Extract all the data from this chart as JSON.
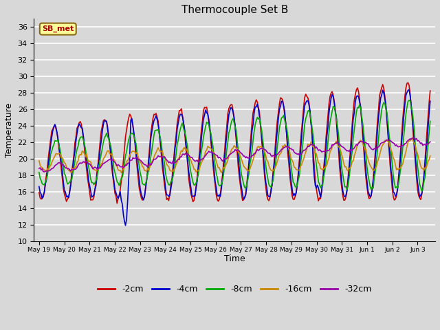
{
  "title": "Thermocouple Set B",
  "xlabel": "Time",
  "ylabel": "Temperature",
  "ylim": [
    10,
    37
  ],
  "yticks": [
    10,
    12,
    14,
    16,
    18,
    20,
    22,
    24,
    26,
    28,
    30,
    32,
    34,
    36
  ],
  "plot_bg_color": "#d8d8d8",
  "fig_bg_color": "#d8d8d8",
  "annotation_text": "SB_met",
  "annotation_bg": "#ffff99",
  "annotation_border": "#8b6914",
  "annotation_text_color": "#aa0000",
  "legend_labels": [
    "-2cm",
    "-4cm",
    "-8cm",
    "-16cm",
    "-32cm"
  ],
  "line_colors": [
    "#cc0000",
    "#0000cc",
    "#00aa00",
    "#cc8800",
    "#9900aa"
  ],
  "line_width": 1.2
}
